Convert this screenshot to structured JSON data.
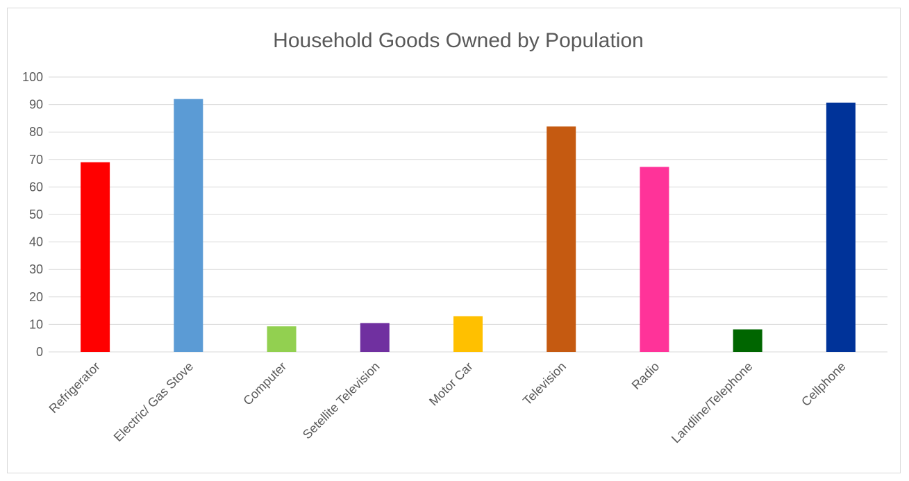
{
  "chart_data": {
    "type": "bar",
    "title": "Household Goods Owned by Population",
    "xlabel": "",
    "ylabel": "",
    "ylim": [
      0,
      100
    ],
    "yticks": [
      0,
      10,
      20,
      30,
      40,
      50,
      60,
      70,
      80,
      90,
      100
    ],
    "grid": true,
    "legend": "none",
    "categories": [
      "Refrigerator",
      "Electric/ Gas Stove",
      "Computer",
      "Setellite Television",
      "Motor Car",
      "Television",
      "Radio",
      "Landline/Telephone",
      "Cellphone"
    ],
    "values": [
      69,
      92,
      9.3,
      10.5,
      13,
      82,
      67.3,
      8.2,
      90.7
    ],
    "colors": [
      "#ff0000",
      "#5b9bd5",
      "#92d050",
      "#7030a0",
      "#ffc000",
      "#c55a11",
      "#ff3399",
      "#006600",
      "#003399"
    ]
  }
}
